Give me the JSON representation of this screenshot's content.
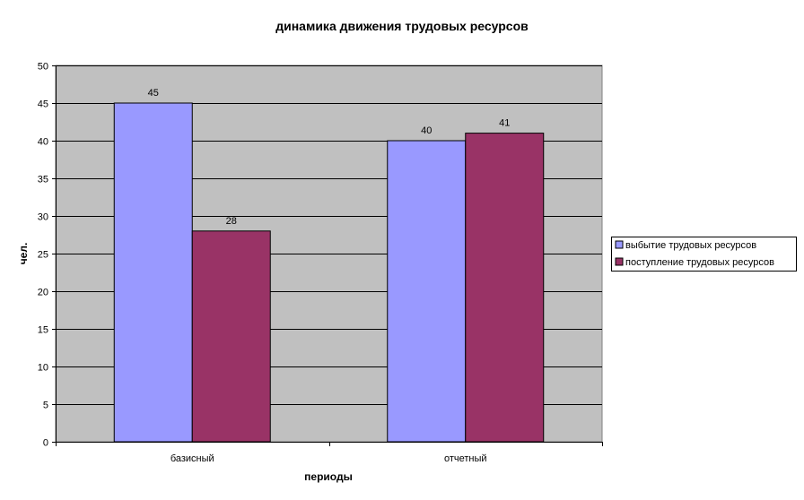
{
  "chart_data": {
    "type": "bar",
    "title": "динамика движения трудовых ресурсов",
    "xlabel": "периоды",
    "ylabel": "чел.",
    "categories": [
      "базисный",
      "отчетный"
    ],
    "series": [
      {
        "name": "выбытие трудовых ресурсов",
        "values": [
          45,
          40
        ],
        "color": "#9999ff"
      },
      {
        "name": "поступление трудовых ресурсов",
        "values": [
          28,
          41
        ],
        "color": "#993366"
      }
    ],
    "ylim": [
      0,
      50
    ],
    "yticks": [
      0,
      5,
      10,
      15,
      20,
      25,
      30,
      35,
      40,
      45,
      50
    ],
    "grid": true,
    "plot_background": "#c0c0c0",
    "legend_position": "right",
    "data_labels": true
  }
}
